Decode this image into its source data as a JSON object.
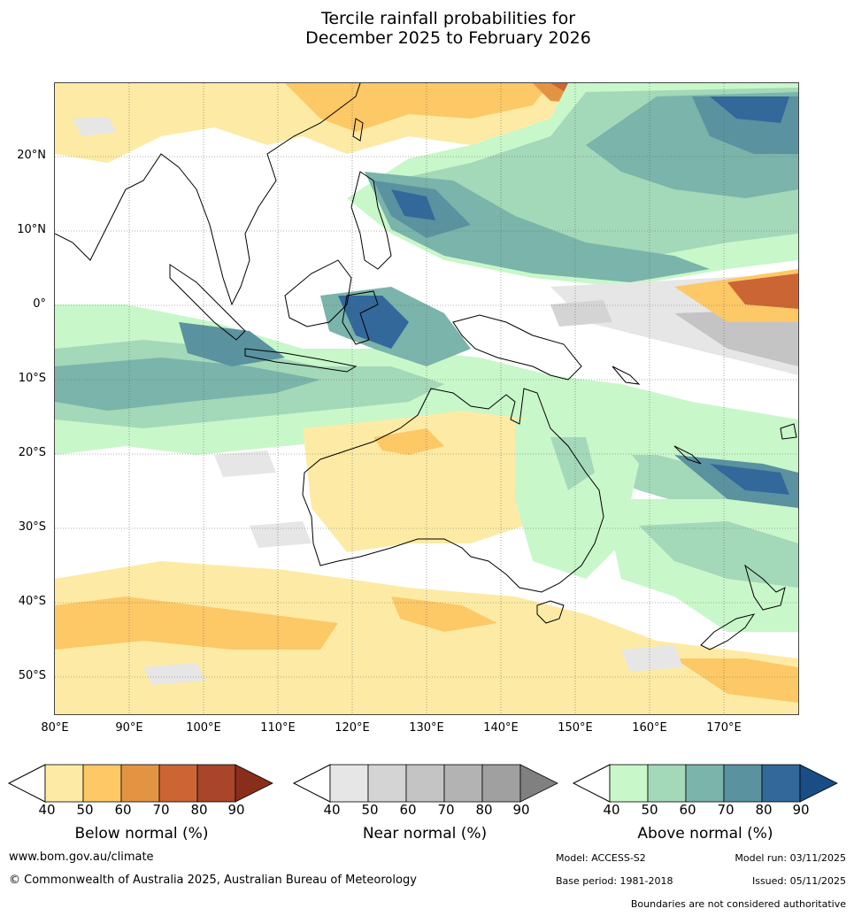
{
  "title": {
    "line1": "Tercile rainfall probabilities for",
    "line2": "December 2025 to February 2026"
  },
  "map": {
    "lat_labels": [
      "20°N",
      "10°N",
      "0°",
      "10°S",
      "20°S",
      "30°S",
      "40°S",
      "50°S"
    ],
    "lon_labels": [
      "80°E",
      "90°E",
      "100°E",
      "110°E",
      "120°E",
      "130°E",
      "140°E",
      "150°E",
      "160°E",
      "170°E"
    ]
  },
  "colorbars": [
    {
      "title": "Below normal (%)",
      "ticks": [
        "40",
        "50",
        "60",
        "70",
        "80",
        "90"
      ],
      "colors": [
        "#fdeba5",
        "#fdc866",
        "#e39443",
        "#cc6534",
        "#a8452a",
        "#8a2e1c"
      ]
    },
    {
      "title": "Near normal (%)",
      "ticks": [
        "40",
        "50",
        "60",
        "70",
        "80",
        "90"
      ],
      "colors": [
        "#e6e6e6",
        "#d4d4d4",
        "#c4c4c4",
        "#b3b3b3",
        "#a0a0a0",
        "#808080"
      ]
    },
    {
      "title": "Above normal (%)",
      "ticks": [
        "40",
        "50",
        "60",
        "70",
        "80",
        "90"
      ],
      "colors": [
        "#c8f7c9",
        "#a3d8b8",
        "#7ab4aa",
        "#5a92a0",
        "#33689b",
        "#184d85"
      ]
    }
  ],
  "footer": {
    "website": "www.bom.gov.au/climate",
    "copyright": "© Commonwealth of Australia 2025, Australian Bureau of Meteorology",
    "model": "Model: ACCESS-S2",
    "model_run": "Model run: 03/11/2025",
    "base_period": "Base period: 1981-2018",
    "issued": "Issued: 05/11/2025",
    "disclaimer": "Boundaries are not considered authoritative"
  }
}
